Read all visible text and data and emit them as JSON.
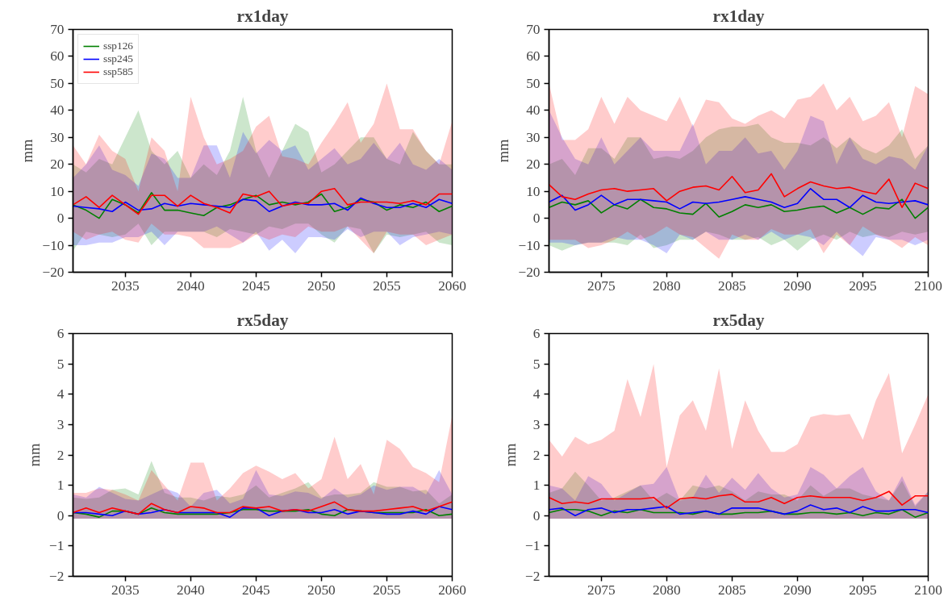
{
  "chart_data": [
    {
      "type": "line",
      "title": "rx1day",
      "ylabel": "mm",
      "legend": "top left",
      "xlim": [
        2031,
        2060
      ],
      "xticks": [
        2035,
        2040,
        2045,
        2050,
        2055,
        2060
      ],
      "ylim": [
        -20,
        70
      ],
      "yticks": [
        -20,
        -10,
        0,
        10,
        20,
        30,
        40,
        50,
        60,
        70
      ],
      "grid": false,
      "x": [
        2031,
        2032,
        2033,
        2034,
        2035,
        2036,
        2037,
        2038,
        2039,
        2040,
        2041,
        2042,
        2043,
        2044,
        2045,
        2046,
        2047,
        2048,
        2049,
        2050,
        2051,
        2052,
        2053,
        2054,
        2055,
        2056,
        2057,
        2058,
        2059,
        2060
      ],
      "series": [
        {
          "name": "ssp126",
          "color": "#008000",
          "values": [
            5,
            3,
            0,
            7,
            5,
            2,
            9.5,
            3,
            3,
            2,
            1,
            4,
            5,
            7,
            8.5,
            5,
            6,
            5,
            6,
            9,
            2.5,
            4,
            7,
            6,
            3,
            5,
            4,
            6,
            2.5,
            4.5
          ],
          "lower": [
            -12,
            -5,
            -6,
            -7,
            -6,
            -2,
            -10,
            -5,
            -5,
            -5,
            -5,
            -7,
            -4,
            -5,
            -6,
            -3,
            -4,
            -2,
            -2,
            -6,
            -9,
            -3,
            -4,
            -13,
            -6,
            -7,
            -6,
            -5,
            -9,
            -10
          ],
          "upper": [
            20,
            17,
            22,
            20,
            30,
            40,
            25,
            20,
            25,
            15,
            20,
            16,
            25,
            45,
            25,
            15,
            25,
            35,
            32,
            17,
            20,
            25,
            30,
            30,
            22,
            20,
            32,
            25,
            20,
            20
          ]
        },
        {
          "name": "ssp245",
          "color": "#0000ff",
          "values": [
            4.5,
            4,
            3.5,
            2.5,
            6,
            3,
            3.5,
            5.5,
            4.5,
            5.5,
            5,
            4.5,
            4,
            7,
            6.5,
            2.5,
            4.5,
            6,
            5,
            5,
            5.5,
            3,
            7.5,
            5.5,
            4,
            4,
            5.5,
            4,
            7,
            5.5
          ],
          "lower": [
            -10,
            -10,
            -9,
            -9,
            -7,
            -7,
            -5,
            -10,
            -5,
            -5,
            -5,
            -3,
            -6,
            -9,
            -5,
            -12,
            -8,
            -13,
            -7,
            -7,
            -8,
            -4,
            -7,
            -5,
            -5,
            -10,
            -7,
            -6,
            -5,
            -6
          ],
          "upper": [
            15,
            20,
            27,
            18,
            16,
            12,
            24,
            22,
            15,
            15,
            27,
            27,
            15,
            32,
            24,
            29,
            25,
            27,
            18,
            22,
            26,
            20,
            22,
            28,
            22,
            28,
            20,
            18,
            22,
            18
          ]
        },
        {
          "name": "ssp585",
          "color": "#ff0000",
          "values": [
            5,
            8,
            4,
            8.5,
            5,
            1.5,
            8.5,
            8.5,
            4.5,
            8.5,
            5.5,
            4,
            2,
            9,
            8,
            10,
            4.5,
            5.5,
            5.5,
            10,
            11,
            5,
            6,
            6,
            6,
            5.5,
            6.5,
            5,
            9,
            9
          ],
          "lower": [
            -5,
            -8,
            -6,
            -5,
            -8,
            -9,
            -2,
            -6,
            -6,
            -7,
            -11,
            -11,
            -11,
            -9,
            -6,
            -8,
            -6,
            -7,
            -3,
            -5,
            -5,
            -3,
            -8,
            -13,
            -5,
            -6,
            -6,
            -10,
            -8,
            -6
          ],
          "upper": [
            27,
            20,
            31,
            25,
            22,
            10,
            30,
            25,
            10,
            45,
            30,
            20,
            22,
            25,
            34,
            38,
            23,
            22,
            20,
            28,
            35,
            43,
            28,
            35,
            50,
            33,
            33,
            25,
            20,
            36
          ]
        }
      ]
    },
    {
      "type": "line",
      "title": "rx1day",
      "ylabel": "mm",
      "xlim": [
        2071,
        2100
      ],
      "xticks": [
        2075,
        2080,
        2085,
        2090,
        2095,
        2100
      ],
      "ylim": [
        -20,
        70
      ],
      "yticks": [
        -20,
        -10,
        0,
        10,
        20,
        30,
        40,
        50,
        60,
        70
      ],
      "grid": false,
      "x": [
        2071,
        2072,
        2073,
        2074,
        2075,
        2076,
        2077,
        2078,
        2079,
        2080,
        2081,
        2082,
        2083,
        2084,
        2085,
        2086,
        2087,
        2088,
        2089,
        2090,
        2091,
        2092,
        2093,
        2094,
        2095,
        2096,
        2097,
        2098,
        2099,
        2100
      ],
      "series": [
        {
          "color": "#008000",
          "values": [
            4,
            6,
            5,
            6.5,
            2,
            5,
            3.5,
            7,
            4,
            3.5,
            2,
            1.5,
            5.5,
            0.5,
            2.5,
            5,
            4,
            5,
            2.5,
            3,
            4,
            4.5,
            2,
            4,
            1.5,
            4,
            3.5,
            7,
            0,
            4
          ],
          "lower": [
            -10,
            -12,
            -10,
            -9,
            -9,
            -9,
            -10,
            -6,
            -11,
            -10,
            -8,
            -8,
            -5,
            -6,
            -8,
            -8,
            -7,
            -10,
            -8,
            -12,
            -8,
            -6,
            -8,
            -5,
            -7,
            -6,
            -7,
            -5,
            -6,
            -5
          ],
          "upper": [
            20,
            22,
            16,
            26,
            26,
            22,
            30,
            30,
            22,
            23,
            22,
            25,
            30,
            33,
            34,
            34,
            35,
            30,
            28,
            28,
            27,
            30,
            26,
            30,
            26,
            24,
            27,
            33,
            22,
            27
          ]
        },
        {
          "color": "#0000ff",
          "values": [
            6,
            8.5,
            3,
            5,
            8.5,
            5,
            7,
            7,
            6.5,
            6,
            3.5,
            6,
            5.5,
            6,
            7,
            8,
            7,
            6,
            4,
            5.5,
            11,
            7,
            7,
            4,
            8.5,
            6,
            5.5,
            6,
            6.5,
            5
          ],
          "lower": [
            -9,
            -9,
            -10,
            -9,
            -9,
            -7,
            -8,
            -8,
            -10,
            -13,
            -6,
            -8,
            -5,
            -8,
            -8,
            -6,
            -8,
            -5,
            -8,
            -6,
            -7,
            -10,
            -5,
            -10,
            -14,
            -7,
            -8,
            -8,
            -10,
            -8
          ],
          "upper": [
            40,
            30,
            22,
            20,
            30,
            20,
            25,
            30,
            25,
            25,
            25,
            35,
            20,
            25,
            25,
            30,
            24,
            25,
            18,
            25,
            38,
            36,
            20,
            30,
            22,
            20,
            23,
            22,
            18,
            27
          ]
        },
        {
          "color": "#ff0000",
          "values": [
            12.5,
            8,
            7,
            9,
            10.5,
            11,
            10,
            10.5,
            11,
            6.5,
            10,
            11.5,
            12,
            10.5,
            15.5,
            9.5,
            10.5,
            16.5,
            8,
            11,
            13.5,
            12,
            11,
            11.5,
            10,
            9,
            14.5,
            4,
            13,
            11
          ],
          "lower": [
            -8,
            -8,
            -8,
            -11,
            -10,
            -8,
            -5,
            -8,
            -6,
            -3,
            -6,
            -7,
            -11,
            -15,
            -6,
            -8,
            -8,
            -4,
            -6,
            -6,
            -4,
            -13,
            -6,
            -10,
            -3,
            -6,
            -8,
            -11,
            -7,
            -10
          ],
          "upper": [
            50,
            29,
            29,
            33,
            45,
            35,
            45,
            40,
            38,
            36,
            45,
            34,
            44,
            43,
            37,
            35,
            38,
            40,
            37,
            44,
            45,
            50,
            40,
            45,
            36,
            38,
            43,
            30,
            49,
            46
          ]
        }
      ]
    },
    {
      "type": "line",
      "title": "rx5day",
      "ylabel": "mm",
      "xlim": [
        2031,
        2060
      ],
      "xticks": [
        2035,
        2040,
        2045,
        2050,
        2055,
        2060
      ],
      "ylim": [
        -2,
        6
      ],
      "yticks": [
        -2,
        -1,
        0,
        1,
        2,
        3,
        4,
        5,
        6
      ],
      "grid": false,
      "x": [
        2031,
        2032,
        2033,
        2034,
        2035,
        2036,
        2037,
        2038,
        2039,
        2040,
        2041,
        2042,
        2043,
        2044,
        2045,
        2046,
        2047,
        2048,
        2049,
        2050,
        2051,
        2052,
        2053,
        2054,
        2055,
        2056,
        2057,
        2058,
        2059,
        2060
      ],
      "series": [
        {
          "color": "#008000",
          "values": [
            0.1,
            0.05,
            -0.05,
            0.15,
            0.15,
            0.05,
            0.25,
            0.1,
            0.05,
            0.05,
            0.05,
            0.05,
            0.1,
            0.2,
            0.2,
            0.15,
            0.15,
            0.15,
            0.2,
            0.05,
            0,
            0.2,
            0.15,
            0.1,
            0.1,
            0.1,
            0.1,
            0.2,
            0,
            0.05
          ],
          "lower": [
            -0.1,
            -0.1,
            -0.1,
            -0.1,
            -0.1,
            -0.1,
            -0.1,
            -0.1,
            -0.1,
            -0.1,
            -0.1,
            -0.1,
            -0.1,
            -0.1,
            -0.1,
            -0.1,
            -0.1,
            -0.1,
            -0.1,
            -0.1,
            -0.1,
            -0.1,
            -0.1,
            -0.1,
            -0.1,
            -0.1,
            -0.1,
            -0.1,
            -0.1,
            -0.1
          ],
          "upper": [
            0.6,
            0.55,
            0.6,
            0.85,
            0.9,
            0.7,
            1.8,
            0.75,
            0.6,
            0.6,
            0.5,
            0.65,
            0.6,
            0.7,
            1.0,
            0.6,
            0.75,
            0.9,
            1.1,
            0.6,
            0.7,
            0.7,
            0.75,
            1.1,
            0.95,
            0.95,
            0.8,
            0.85,
            0.4,
            0.7
          ]
        },
        {
          "color": "#0000ff",
          "values": [
            0.1,
            0.1,
            0.05,
            0,
            0.15,
            0.05,
            0.1,
            0.2,
            0.1,
            0.1,
            0.1,
            0.1,
            -0.05,
            0.25,
            0.25,
            0,
            0.15,
            0.2,
            0.1,
            0.1,
            0.2,
            0.05,
            0.15,
            0.1,
            0.05,
            0.05,
            0.15,
            0.05,
            0.3,
            0.2
          ],
          "lower": [
            -0.1,
            -0.1,
            -0.1,
            -0.1,
            -0.1,
            -0.1,
            -0.1,
            -0.1,
            -0.1,
            -0.1,
            -0.1,
            -0.1,
            -0.1,
            -0.1,
            -0.1,
            -0.1,
            -0.1,
            -0.1,
            -0.1,
            -0.1,
            -0.1,
            -0.1,
            -0.1,
            -0.1,
            -0.1,
            -0.1,
            -0.1,
            -0.1,
            -0.1,
            -0.1
          ],
          "upper": [
            0.7,
            0.6,
            0.95,
            0.75,
            0.55,
            0.5,
            0.7,
            0.9,
            0.75,
            0.3,
            0.75,
            0.85,
            0.4,
            0.55,
            1.5,
            0.7,
            0.65,
            0.8,
            0.75,
            0.55,
            0.9,
            0.6,
            0.7,
            1.0,
            0.85,
            0.95,
            0.95,
            0.7,
            1.5,
            0.7
          ]
        },
        {
          "color": "#ff0000",
          "values": [
            0.1,
            0.25,
            0.1,
            0.25,
            0.15,
            0.05,
            0.4,
            0.2,
            0.1,
            0.3,
            0.25,
            0.1,
            0.1,
            0.3,
            0.25,
            0.3,
            0.15,
            0.2,
            0.15,
            0.3,
            0.45,
            0.2,
            0.15,
            0.15,
            0.2,
            0.25,
            0.3,
            0.15,
            0.3,
            0.45
          ],
          "lower": [
            -0.1,
            -0.1,
            -0.1,
            -0.1,
            -0.1,
            -0.1,
            -0.1,
            -0.1,
            -0.1,
            -0.1,
            -0.1,
            -0.1,
            -0.1,
            -0.1,
            -0.1,
            -0.1,
            -0.1,
            -0.1,
            -0.1,
            -0.1,
            -0.1,
            -0.1,
            -0.1,
            -0.1,
            -0.1,
            -0.1,
            -0.1,
            -0.1,
            -0.1,
            -0.1
          ],
          "upper": [
            0.75,
            0.75,
            0.9,
            0.85,
            0.7,
            0.5,
            1.5,
            1.0,
            0.5,
            1.75,
            1.75,
            0.5,
            0.9,
            1.4,
            1.65,
            1.45,
            1.2,
            1.4,
            0.9,
            1.2,
            2.6,
            1.2,
            1.7,
            0.7,
            2.5,
            2.2,
            1.6,
            1.4,
            1.1,
            3.3
          ]
        }
      ]
    },
    {
      "type": "line",
      "title": "rx5day",
      "ylabel": "mm",
      "xlim": [
        2071,
        2100
      ],
      "xticks": [
        2075,
        2080,
        2085,
        2090,
        2095,
        2100
      ],
      "ylim": [
        -2,
        6
      ],
      "yticks": [
        -2,
        -1,
        0,
        1,
        2,
        3,
        4,
        5,
        6
      ],
      "grid": false,
      "x": [
        2071,
        2072,
        2073,
        2074,
        2075,
        2076,
        2077,
        2078,
        2079,
        2080,
        2081,
        2082,
        2083,
        2084,
        2085,
        2086,
        2087,
        2088,
        2089,
        2090,
        2091,
        2092,
        2093,
        2094,
        2095,
        2096,
        2097,
        2098,
        2099,
        2100
      ],
      "series": [
        {
          "color": "#008000",
          "values": [
            0.1,
            0.2,
            0.2,
            0.15,
            0,
            0.15,
            0.1,
            0.2,
            0.1,
            0.1,
            0.1,
            0.05,
            0.15,
            0.05,
            0.05,
            0.1,
            0.1,
            0.15,
            0.05,
            0.05,
            0.1,
            0.1,
            0.05,
            0.1,
            0,
            0.1,
            0.05,
            0.2,
            -0.05,
            0.1
          ],
          "lower": [
            -0.1,
            -0.1,
            -0.1,
            -0.1,
            -0.1,
            -0.1,
            -0.1,
            -0.1,
            -0.1,
            -0.1,
            -0.1,
            -0.1,
            -0.1,
            -0.1,
            -0.1,
            -0.1,
            -0.1,
            -0.1,
            -0.1,
            -0.1,
            -0.1,
            -0.1,
            -0.1,
            -0.1,
            -0.1,
            -0.1,
            -0.1,
            -0.1,
            -0.1,
            -0.1
          ],
          "upper": [
            0.75,
            0.9,
            1.45,
            1.0,
            0.5,
            0.6,
            0.8,
            1.0,
            0.5,
            0.75,
            0.5,
            1.0,
            0.9,
            1.0,
            0.8,
            0.5,
            0.8,
            0.7,
            0.7,
            0.5,
            1.0,
            0.65,
            0.9,
            0.9,
            0.7,
            0.6,
            0.5,
            1.15,
            0.3,
            0.8
          ]
        },
        {
          "color": "#0000ff",
          "values": [
            0.2,
            0.25,
            0,
            0.2,
            0.25,
            0.1,
            0.2,
            0.2,
            0.25,
            0.3,
            0.05,
            0.1,
            0.15,
            0.05,
            0.25,
            0.25,
            0.25,
            0.15,
            0.05,
            0.15,
            0.35,
            0.2,
            0.25,
            0.1,
            0.3,
            0.15,
            0.15,
            0.2,
            0.2,
            0.1
          ],
          "lower": [
            -0.1,
            -0.1,
            -0.1,
            -0.1,
            -0.1,
            -0.1,
            -0.1,
            -0.1,
            -0.1,
            -0.1,
            -0.1,
            -0.1,
            -0.1,
            -0.1,
            -0.1,
            -0.1,
            -0.1,
            -0.1,
            -0.1,
            -0.1,
            -0.1,
            -0.1,
            -0.1,
            -0.1,
            -0.1,
            -0.1,
            -0.1,
            -0.1,
            -0.1,
            -0.1
          ],
          "upper": [
            1.0,
            0.9,
            0.5,
            1.3,
            1.05,
            0.5,
            0.75,
            1.0,
            1.05,
            1.6,
            0.5,
            0.6,
            1.35,
            0.75,
            1.25,
            0.85,
            1.4,
            0.9,
            0.6,
            0.7,
            1.6,
            1.35,
            0.9,
            1.3,
            1.6,
            0.8,
            0.5,
            1.3,
            0.35,
            0.8
          ]
        },
        {
          "color": "#ff0000",
          "values": [
            0.6,
            0.4,
            0.45,
            0.4,
            0.55,
            0.55,
            0.55,
            0.55,
            0.6,
            0.25,
            0.55,
            0.6,
            0.55,
            0.65,
            0.7,
            0.45,
            0.45,
            0.6,
            0.4,
            0.6,
            0.65,
            0.6,
            0.6,
            0.6,
            0.5,
            0.6,
            0.8,
            0.35,
            0.65,
            0.65
          ],
          "lower": [
            -0.1,
            -0.1,
            -0.1,
            -0.1,
            -0.1,
            -0.1,
            -0.1,
            -0.1,
            -0.1,
            -0.1,
            -0.1,
            -0.1,
            -0.1,
            -0.1,
            -0.1,
            -0.1,
            -0.1,
            -0.1,
            -0.1,
            -0.1,
            -0.1,
            -0.1,
            -0.1,
            -0.1,
            -0.1,
            -0.1,
            -0.1,
            -0.1,
            -0.1,
            -0.1
          ],
          "upper": [
            2.5,
            1.95,
            2.6,
            2.35,
            2.5,
            2.8,
            4.5,
            3.25,
            5.0,
            1.6,
            3.3,
            3.8,
            2.8,
            4.85,
            2.2,
            3.8,
            2.8,
            2.1,
            2.1,
            2.35,
            3.25,
            3.35,
            3.3,
            3.35,
            2.5,
            3.8,
            4.7,
            2.05,
            3.0,
            4.0
          ]
        }
      ]
    }
  ]
}
